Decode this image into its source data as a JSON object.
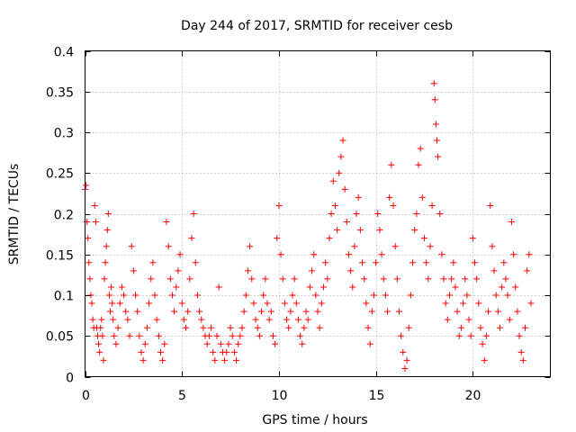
{
  "chart_data": {
    "type": "scatter",
    "title": "Day 244 of 2017, SRMTID for receiver cesb",
    "xlabel": "GPS time / hours",
    "ylabel": "SRMTID / TECUs",
    "xlim": [
      0,
      24
    ],
    "ylim": [
      0,
      0.4
    ],
    "x_ticks": [
      0,
      5,
      10,
      15,
      20
    ],
    "x_tick_labels": [
      "0",
      "5",
      "10",
      "15",
      "20"
    ],
    "y_ticks": [
      0,
      0.05,
      0.1,
      0.15,
      0.2,
      0.25,
      0.3,
      0.35,
      0.4
    ],
    "y_tick_labels": [
      "0",
      "0.05",
      "0.1",
      "0.15",
      "0.2",
      "0.25",
      "0.3",
      "0.35",
      "0.4"
    ],
    "grid": true,
    "marker": "+",
    "color": "#ff0000",
    "series": [
      {
        "name": "SRMTID",
        "points": [
          [
            0.0,
            0.23
          ],
          [
            0.05,
            0.235
          ],
          [
            0.1,
            0.19
          ],
          [
            0.15,
            0.17
          ],
          [
            0.2,
            0.14
          ],
          [
            0.25,
            0.12
          ],
          [
            0.3,
            0.1
          ],
          [
            0.35,
            0.09
          ],
          [
            0.4,
            0.07
          ],
          [
            0.45,
            0.06
          ],
          [
            0.5,
            0.21
          ],
          [
            0.55,
            0.19
          ],
          [
            0.6,
            0.06
          ],
          [
            0.65,
            0.05
          ],
          [
            0.7,
            0.04
          ],
          [
            0.75,
            0.03
          ],
          [
            0.8,
            0.06
          ],
          [
            0.85,
            0.07
          ],
          [
            0.9,
            0.05
          ],
          [
            0.95,
            0.02
          ],
          [
            1.0,
            0.12
          ],
          [
            1.05,
            0.14
          ],
          [
            1.1,
            0.16
          ],
          [
            1.15,
            0.18
          ],
          [
            1.2,
            0.2
          ],
          [
            1.25,
            0.1
          ],
          [
            1.3,
            0.08
          ],
          [
            1.35,
            0.11
          ],
          [
            1.4,
            0.09
          ],
          [
            1.45,
            0.07
          ],
          [
            1.5,
            0.05
          ],
          [
            1.6,
            0.04
          ],
          [
            1.7,
            0.06
          ],
          [
            1.8,
            0.09
          ],
          [
            1.9,
            0.11
          ],
          [
            2.0,
            0.1
          ],
          [
            2.1,
            0.08
          ],
          [
            2.2,
            0.07
          ],
          [
            2.3,
            0.05
          ],
          [
            2.4,
            0.16
          ],
          [
            2.5,
            0.13
          ],
          [
            2.6,
            0.1
          ],
          [
            2.7,
            0.08
          ],
          [
            2.8,
            0.05
          ],
          [
            2.9,
            0.03
          ],
          [
            3.0,
            0.02
          ],
          [
            3.1,
            0.04
          ],
          [
            3.2,
            0.06
          ],
          [
            3.3,
            0.09
          ],
          [
            3.4,
            0.12
          ],
          [
            3.5,
            0.14
          ],
          [
            3.6,
            0.1
          ],
          [
            3.7,
            0.07
          ],
          [
            3.8,
            0.05
          ],
          [
            3.9,
            0.03
          ],
          [
            4.0,
            0.02
          ],
          [
            4.1,
            0.04
          ],
          [
            4.2,
            0.19
          ],
          [
            4.3,
            0.16
          ],
          [
            4.4,
            0.12
          ],
          [
            4.5,
            0.1
          ],
          [
            4.6,
            0.08
          ],
          [
            4.7,
            0.11
          ],
          [
            4.8,
            0.13
          ],
          [
            4.9,
            0.15
          ],
          [
            5.0,
            0.09
          ],
          [
            5.1,
            0.07
          ],
          [
            5.2,
            0.06
          ],
          [
            5.3,
            0.08
          ],
          [
            5.4,
            0.12
          ],
          [
            5.5,
            0.17
          ],
          [
            5.6,
            0.2
          ],
          [
            5.7,
            0.14
          ],
          [
            5.8,
            0.1
          ],
          [
            5.9,
            0.08
          ],
          [
            6.0,
            0.07
          ],
          [
            6.1,
            0.06
          ],
          [
            6.2,
            0.05
          ],
          [
            6.3,
            0.04
          ],
          [
            6.4,
            0.05
          ],
          [
            6.5,
            0.06
          ],
          [
            6.6,
            0.03
          ],
          [
            6.7,
            0.02
          ],
          [
            6.8,
            0.05
          ],
          [
            6.9,
            0.11
          ],
          [
            7.0,
            0.04
          ],
          [
            7.1,
            0.03
          ],
          [
            7.2,
            0.02
          ],
          [
            7.3,
            0.03
          ],
          [
            7.4,
            0.04
          ],
          [
            7.5,
            0.06
          ],
          [
            7.6,
            0.05
          ],
          [
            7.7,
            0.03
          ],
          [
            7.8,
            0.02
          ],
          [
            7.9,
            0.04
          ],
          [
            8.0,
            0.05
          ],
          [
            8.1,
            0.06
          ],
          [
            8.2,
            0.08
          ],
          [
            8.3,
            0.1
          ],
          [
            8.4,
            0.13
          ],
          [
            8.5,
            0.16
          ],
          [
            8.6,
            0.12
          ],
          [
            8.7,
            0.09
          ],
          [
            8.8,
            0.07
          ],
          [
            8.9,
            0.06
          ],
          [
            9.0,
            0.05
          ],
          [
            9.1,
            0.08
          ],
          [
            9.2,
            0.1
          ],
          [
            9.3,
            0.12
          ],
          [
            9.4,
            0.09
          ],
          [
            9.5,
            0.07
          ],
          [
            9.6,
            0.08
          ],
          [
            9.7,
            0.05
          ],
          [
            9.8,
            0.04
          ],
          [
            9.9,
            0.17
          ],
          [
            10.0,
            0.21
          ],
          [
            10.1,
            0.15
          ],
          [
            10.2,
            0.12
          ],
          [
            10.3,
            0.09
          ],
          [
            10.4,
            0.07
          ],
          [
            10.5,
            0.06
          ],
          [
            10.6,
            0.08
          ],
          [
            10.7,
            0.1
          ],
          [
            10.8,
            0.12
          ],
          [
            10.9,
            0.09
          ],
          [
            11.0,
            0.07
          ],
          [
            11.1,
            0.05
          ],
          [
            11.2,
            0.04
          ],
          [
            11.3,
            0.06
          ],
          [
            11.4,
            0.08
          ],
          [
            11.5,
            0.07
          ],
          [
            11.6,
            0.11
          ],
          [
            11.7,
            0.13
          ],
          [
            11.8,
            0.15
          ],
          [
            11.9,
            0.1
          ],
          [
            12.0,
            0.08
          ],
          [
            12.1,
            0.06
          ],
          [
            12.2,
            0.09
          ],
          [
            12.3,
            0.11
          ],
          [
            12.4,
            0.14
          ],
          [
            12.5,
            0.12
          ],
          [
            12.6,
            0.17
          ],
          [
            12.7,
            0.2
          ],
          [
            12.8,
            0.24
          ],
          [
            12.9,
            0.21
          ],
          [
            13.0,
            0.18
          ],
          [
            13.1,
            0.25
          ],
          [
            13.2,
            0.27
          ],
          [
            13.3,
            0.29
          ],
          [
            13.4,
            0.23
          ],
          [
            13.5,
            0.19
          ],
          [
            13.6,
            0.15
          ],
          [
            13.7,
            0.13
          ],
          [
            13.8,
            0.11
          ],
          [
            13.9,
            0.16
          ],
          [
            14.0,
            0.2
          ],
          [
            14.1,
            0.22
          ],
          [
            14.2,
            0.18
          ],
          [
            14.3,
            0.14
          ],
          [
            14.4,
            0.12
          ],
          [
            14.5,
            0.09
          ],
          [
            14.6,
            0.06
          ],
          [
            14.7,
            0.04
          ],
          [
            14.8,
            0.08
          ],
          [
            14.9,
            0.1
          ],
          [
            15.0,
            0.14
          ],
          [
            15.1,
            0.2
          ],
          [
            15.2,
            0.18
          ],
          [
            15.3,
            0.15
          ],
          [
            15.4,
            0.12
          ],
          [
            15.5,
            0.1
          ],
          [
            15.6,
            0.08
          ],
          [
            15.7,
            0.22
          ],
          [
            15.8,
            0.26
          ],
          [
            15.9,
            0.21
          ],
          [
            16.0,
            0.16
          ],
          [
            16.1,
            0.12
          ],
          [
            16.2,
            0.08
          ],
          [
            16.3,
            0.05
          ],
          [
            16.4,
            0.03
          ],
          [
            16.5,
            0.01
          ],
          [
            16.6,
            0.02
          ],
          [
            16.7,
            0.06
          ],
          [
            16.8,
            0.1
          ],
          [
            16.9,
            0.14
          ],
          [
            17.0,
            0.18
          ],
          [
            17.1,
            0.2
          ],
          [
            17.2,
            0.26
          ],
          [
            17.3,
            0.28
          ],
          [
            17.4,
            0.22
          ],
          [
            17.5,
            0.17
          ],
          [
            17.6,
            0.14
          ],
          [
            17.7,
            0.12
          ],
          [
            17.8,
            0.16
          ],
          [
            17.9,
            0.21
          ],
          [
            18.0,
            0.36
          ],
          [
            18.05,
            0.34
          ],
          [
            18.1,
            0.31
          ],
          [
            18.15,
            0.29
          ],
          [
            18.2,
            0.27
          ],
          [
            18.3,
            0.2
          ],
          [
            18.4,
            0.15
          ],
          [
            18.5,
            0.12
          ],
          [
            18.6,
            0.09
          ],
          [
            18.7,
            0.07
          ],
          [
            18.8,
            0.1
          ],
          [
            18.9,
            0.12
          ],
          [
            19.0,
            0.14
          ],
          [
            19.1,
            0.11
          ],
          [
            19.2,
            0.08
          ],
          [
            19.3,
            0.05
          ],
          [
            19.4,
            0.06
          ],
          [
            19.5,
            0.09
          ],
          [
            19.6,
            0.12
          ],
          [
            19.7,
            0.1
          ],
          [
            19.8,
            0.07
          ],
          [
            19.9,
            0.05
          ],
          [
            20.0,
            0.17
          ],
          [
            20.1,
            0.14
          ],
          [
            20.2,
            0.12
          ],
          [
            20.3,
            0.09
          ],
          [
            20.4,
            0.06
          ],
          [
            20.5,
            0.04
          ],
          [
            20.6,
            0.02
          ],
          [
            20.7,
            0.05
          ],
          [
            20.8,
            0.08
          ],
          [
            20.9,
            0.21
          ],
          [
            21.0,
            0.16
          ],
          [
            21.1,
            0.13
          ],
          [
            21.2,
            0.1
          ],
          [
            21.3,
            0.08
          ],
          [
            21.4,
            0.06
          ],
          [
            21.5,
            0.11
          ],
          [
            21.6,
            0.14
          ],
          [
            21.7,
            0.12
          ],
          [
            21.8,
            0.1
          ],
          [
            21.9,
            0.07
          ],
          [
            22.0,
            0.19
          ],
          [
            22.1,
            0.15
          ],
          [
            22.2,
            0.11
          ],
          [
            22.3,
            0.08
          ],
          [
            22.4,
            0.05
          ],
          [
            22.5,
            0.03
          ],
          [
            22.6,
            0.02
          ],
          [
            22.7,
            0.06
          ],
          [
            22.8,
            0.13
          ],
          [
            22.9,
            0.15
          ],
          [
            23.0,
            0.09
          ]
        ]
      }
    ]
  }
}
